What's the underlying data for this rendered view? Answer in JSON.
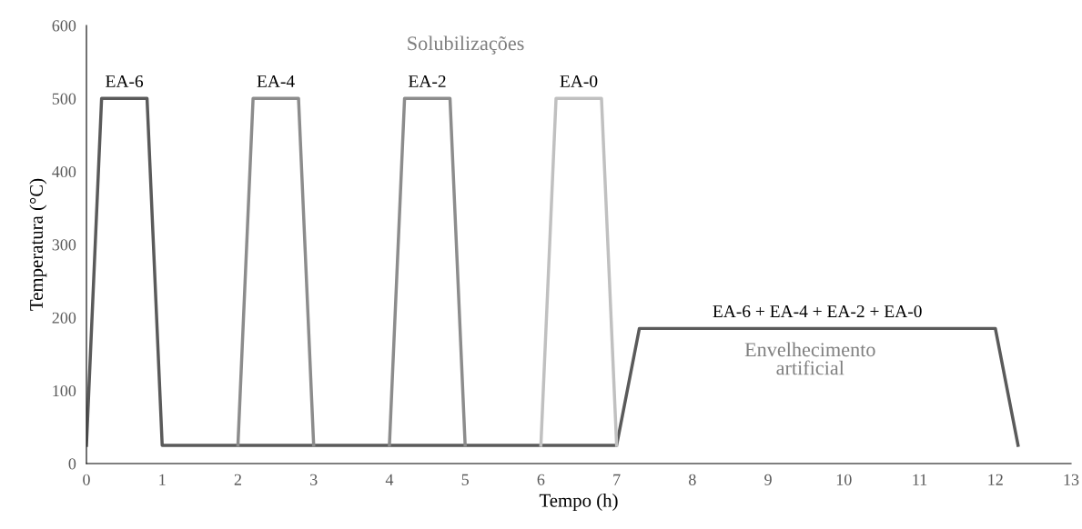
{
  "chart_data": {
    "type": "line",
    "xlabel": "Tempo (h)",
    "ylabel": "Temperatura (°C)",
    "xlim": [
      0,
      13
    ],
    "xticks": [
      0,
      1,
      2,
      3,
      4,
      5,
      6,
      7,
      8,
      9,
      10,
      11,
      12,
      13
    ],
    "ylim": [
      0,
      600
    ],
    "yticks": [
      0,
      100,
      200,
      300,
      400,
      500,
      600
    ],
    "grid": false,
    "legend": false,
    "marker": "none",
    "line_style": "solid",
    "series": [
      {
        "color": "#5a5a5a",
        "x": [
          0,
          0.2,
          0.8,
          1,
          7,
          7.3,
          12,
          12.3
        ],
        "values": [
          25,
          500,
          500,
          25,
          25,
          185,
          185,
          25
        ]
      },
      {
        "color": "#8c8c8c",
        "x": [
          2,
          2.2,
          2.8,
          3
        ],
        "values": [
          25,
          500,
          500,
          25
        ]
      },
      {
        "color": "#8c8c8c",
        "x": [
          4,
          4.2,
          4.8,
          5
        ],
        "values": [
          25,
          500,
          500,
          25
        ]
      },
      {
        "color": "#c0c0c0",
        "x": [
          6,
          6.2,
          6.8,
          7
        ],
        "values": [
          25,
          500,
          500,
          25
        ]
      }
    ],
    "annotations": [
      {
        "text": "EA-6",
        "x": 0.5,
        "y": 500
      },
      {
        "text": "EA-4",
        "x": 2.5,
        "y": 500
      },
      {
        "text": "EA-2",
        "x": 4.5,
        "y": 500
      },
      {
        "text": "EA-0",
        "x": 6.5,
        "y": 500
      },
      {
        "text": "EA-6 + EA-4 + EA-2 + EA-0",
        "x": 9.65,
        "y": 185
      },
      "Solubilizações",
      "Envelhecimento\nartificial"
    ]
  }
}
